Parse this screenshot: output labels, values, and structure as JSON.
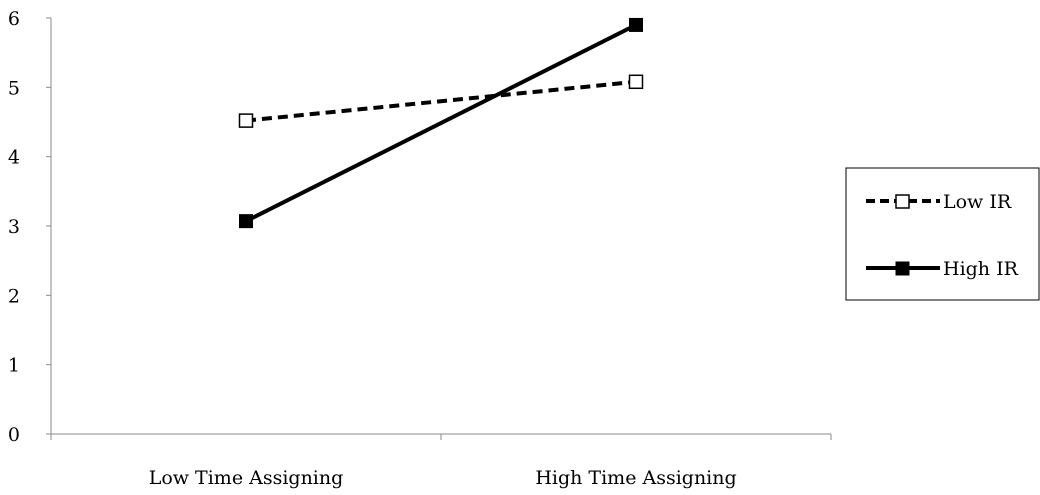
{
  "chart_data": {
    "type": "line",
    "categories": [
      "Low Time Assigning",
      "High Time Assigning"
    ],
    "ylim": [
      0,
      6
    ],
    "yticks": [
      0,
      1,
      2,
      3,
      4,
      5,
      6
    ],
    "grid": false,
    "legend_position": "right",
    "series": [
      {
        "name": "Low IR",
        "values": [
          4.52,
          5.08
        ],
        "line_style": "dashed",
        "marker": "hollow-square",
        "color": "#000000"
      },
      {
        "name": "High IR",
        "values": [
          3.07,
          5.9
        ],
        "line_style": "solid",
        "marker": "filled-square",
        "color": "#000000"
      }
    ]
  }
}
